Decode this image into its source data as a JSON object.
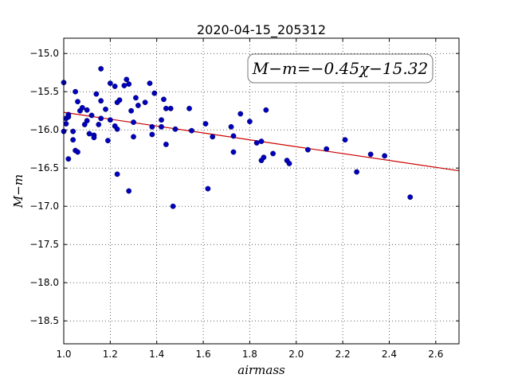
{
  "chart_data": {
    "type": "scatter",
    "title": "2020-04-15_205312",
    "xlabel": "airmass",
    "ylabel": "M−m",
    "xlim": [
      1.0,
      2.7
    ],
    "ylim": [
      -18.8,
      -14.8
    ],
    "xticks": [
      1.0,
      1.2,
      1.4,
      1.6,
      1.8,
      2.0,
      2.2,
      2.4,
      2.6
    ],
    "xtick_labels": [
      "1.0",
      "1.2",
      "1.4",
      "1.6",
      "1.8",
      "2.0",
      "2.2",
      "2.4",
      "2.6"
    ],
    "yticks": [
      -15.0,
      -15.5,
      -16.0,
      -16.5,
      -17.0,
      -17.5,
      -18.0,
      -18.5
    ],
    "ytick_labels": [
      "−15.0",
      "−15.5",
      "−16.0",
      "−16.5",
      "−17.0",
      "−17.5",
      "−18.0",
      "−18.5"
    ],
    "grid": true,
    "annotation": "M−m=−0.45χ−15.32",
    "fit": {
      "slope": -0.45,
      "intercept": -15.32,
      "color": "#cc0000"
    },
    "point_color": "#0000bb",
    "points": [
      [
        1.0,
        -15.38
      ],
      [
        1.0,
        -16.02
      ],
      [
        1.01,
        -15.92
      ],
      [
        1.01,
        -15.85
      ],
      [
        1.02,
        -15.83
      ],
      [
        1.02,
        -15.8
      ],
      [
        1.02,
        -16.38
      ],
      [
        1.04,
        -16.02
      ],
      [
        1.04,
        -16.13
      ],
      [
        1.05,
        -15.5
      ],
      [
        1.05,
        -16.27
      ],
      [
        1.06,
        -15.63
      ],
      [
        1.06,
        -16.29
      ],
      [
        1.07,
        -15.75
      ],
      [
        1.08,
        -15.71
      ],
      [
        1.09,
        -15.93
      ],
      [
        1.1,
        -15.88
      ],
      [
        1.1,
        -15.74
      ],
      [
        1.11,
        -16.05
      ],
      [
        1.12,
        -15.81
      ],
      [
        1.13,
        -16.07
      ],
      [
        1.13,
        -16.1
      ],
      [
        1.14,
        -15.53
      ],
      [
        1.15,
        -15.93
      ],
      [
        1.16,
        -15.62
      ],
      [
        1.16,
        -15.85
      ],
      [
        1.16,
        -15.2
      ],
      [
        1.18,
        -15.73
      ],
      [
        1.19,
        -16.14
      ],
      [
        1.2,
        -15.39
      ],
      [
        1.2,
        -15.87
      ],
      [
        1.22,
        -15.95
      ],
      [
        1.22,
        -15.43
      ],
      [
        1.23,
        -15.64
      ],
      [
        1.23,
        -15.99
      ],
      [
        1.23,
        -16.58
      ],
      [
        1.24,
        -15.61
      ],
      [
        1.26,
        -15.42
      ],
      [
        1.27,
        -15.34
      ],
      [
        1.28,
        -15.4
      ],
      [
        1.28,
        -16.8
      ],
      [
        1.29,
        -15.75
      ],
      [
        1.3,
        -15.9
      ],
      [
        1.3,
        -16.09
      ],
      [
        1.31,
        -15.58
      ],
      [
        1.32,
        -15.68
      ],
      [
        1.35,
        -15.64
      ],
      [
        1.37,
        -15.39
      ],
      [
        1.38,
        -16.06
      ],
      [
        1.38,
        -15.96
      ],
      [
        1.39,
        -15.52
      ],
      [
        1.42,
        -15.96
      ],
      [
        1.42,
        -15.87
      ],
      [
        1.43,
        -15.6
      ],
      [
        1.44,
        -15.72
      ],
      [
        1.44,
        -16.19
      ],
      [
        1.46,
        -15.72
      ],
      [
        1.47,
        -17.0
      ],
      [
        1.48,
        -15.99
      ],
      [
        1.54,
        -15.72
      ],
      [
        1.55,
        -16.01
      ],
      [
        1.61,
        -15.92
      ],
      [
        1.62,
        -16.77
      ],
      [
        1.64,
        -16.09
      ],
      [
        1.72,
        -15.96
      ],
      [
        1.73,
        -16.08
      ],
      [
        1.73,
        -16.29
      ],
      [
        1.76,
        -15.79
      ],
      [
        1.8,
        -15.89
      ],
      [
        1.83,
        -16.17
      ],
      [
        1.85,
        -16.4
      ],
      [
        1.85,
        -16.15
      ],
      [
        1.86,
        -16.36
      ],
      [
        1.87,
        -15.74
      ],
      [
        1.9,
        -16.31
      ],
      [
        1.96,
        -16.4
      ],
      [
        1.97,
        -16.44
      ],
      [
        2.05,
        -16.26
      ],
      [
        2.13,
        -16.25
      ],
      [
        2.21,
        -16.13
      ],
      [
        2.26,
        -16.55
      ],
      [
        2.32,
        -16.32
      ],
      [
        2.38,
        -16.34
      ],
      [
        2.49,
        -16.88
      ]
    ]
  }
}
